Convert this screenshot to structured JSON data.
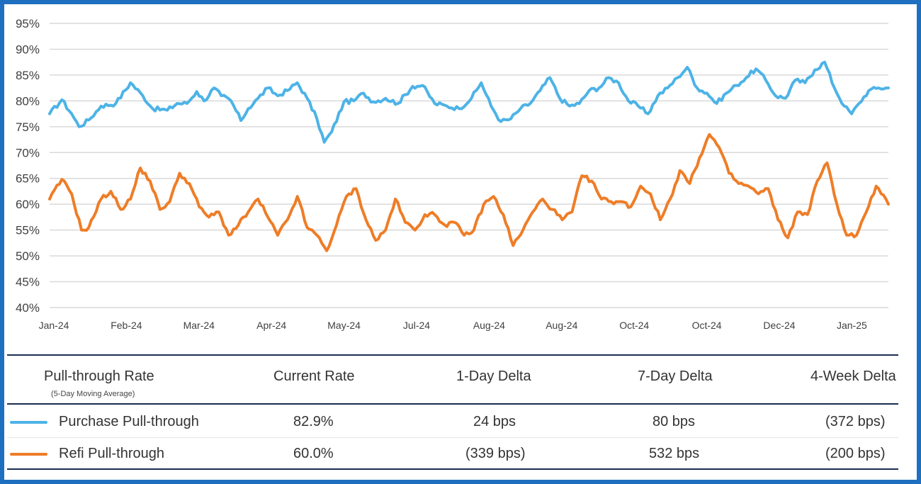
{
  "chart_data": {
    "type": "line",
    "x_tick_labels": [
      "Jan-24",
      "Feb-24",
      "Mar-24",
      "Apr-24",
      "May-24",
      "Jul-24",
      "Aug-24",
      "Aug-24",
      "Oct-24",
      "Oct-24",
      "Dec-24",
      "Jan-25"
    ],
    "y_tick_labels": [
      "95%",
      "90%",
      "85%",
      "80%",
      "75%",
      "70%",
      "65%",
      "60%",
      "55%",
      "50%",
      "45%",
      "40%"
    ],
    "ylim": [
      40,
      95
    ],
    "y_unit": "%",
    "grid": true,
    "x_count": 260,
    "series": [
      {
        "name": "Purchase Pull-through",
        "color": "#4db3e6",
        "keypoints": [
          [
            0,
            77.5
          ],
          [
            5,
            80.2
          ],
          [
            9,
            77.5
          ],
          [
            12,
            75.0
          ],
          [
            16,
            76.3
          ],
          [
            21,
            79.0
          ],
          [
            27,
            79.5
          ],
          [
            33,
            83.5
          ],
          [
            38,
            81.0
          ],
          [
            42,
            78.5
          ],
          [
            48,
            78.2
          ],
          [
            52,
            79.5
          ],
          [
            56,
            79.5
          ],
          [
            60,
            81.8
          ],
          [
            63,
            80.0
          ],
          [
            67,
            82.5
          ],
          [
            70,
            81.0
          ],
          [
            74,
            80.0
          ],
          [
            78,
            76.2
          ],
          [
            81,
            78.5
          ],
          [
            85,
            80.5
          ],
          [
            89,
            82.5
          ],
          [
            93,
            81.0
          ],
          [
            97,
            82.0
          ],
          [
            101,
            83.5
          ],
          [
            105,
            80.5
          ],
          [
            109,
            76.5
          ],
          [
            112,
            72.0
          ],
          [
            115,
            74.0
          ],
          [
            120,
            79.8
          ],
          [
            124,
            80.0
          ],
          [
            128,
            81.5
          ],
          [
            132,
            79.8
          ],
          [
            137,
            80.5
          ],
          [
            142,
            79.5
          ],
          [
            148,
            82.8
          ],
          [
            152,
            83.0
          ],
          [
            157,
            79.5
          ],
          [
            162,
            79.0
          ],
          [
            167,
            78.5
          ],
          [
            172,
            80.5
          ],
          [
            176,
            83.5
          ],
          [
            180,
            79.0
          ],
          [
            184,
            76.0
          ],
          [
            188,
            76.5
          ],
          [
            192,
            78.5
          ],
          [
            196,
            79.5
          ],
          [
            200,
            82.0
          ],
          [
            204,
            84.5
          ],
          [
            208,
            80.5
          ],
          [
            212,
            79.0
          ],
          [
            216,
            79.5
          ],
          [
            220,
            82.0
          ],
          [
            224,
            82.5
          ],
          [
            228,
            84.5
          ],
          [
            232,
            83.5
          ],
          [
            236,
            80.0
          ],
          [
            240,
            79.0
          ],
          [
            244,
            77.5
          ],
          [
            248,
            81.0
          ],
          [
            252,
            82.5
          ],
          [
            256,
            84.5
          ],
          [
            260,
            86.5
          ],
          [
            264,
            82.5
          ],
          [
            268,
            81.5
          ],
          [
            272,
            79.5
          ],
          [
            276,
            81.5
          ],
          [
            280,
            83.0
          ],
          [
            284,
            84.5
          ],
          [
            288,
            86.2
          ],
          [
            292,
            84.0
          ],
          [
            296,
            81.0
          ],
          [
            300,
            80.5
          ],
          [
            304,
            84.0
          ],
          [
            308,
            83.5
          ],
          [
            312,
            86.0
          ],
          [
            316,
            87.5
          ],
          [
            320,
            82.5
          ],
          [
            324,
            79.0
          ],
          [
            327,
            77.5
          ],
          [
            330,
            79.5
          ],
          [
            334,
            82.0
          ],
          [
            338,
            82.5
          ],
          [
            342,
            82.5
          ]
        ]
      },
      {
        "name": "Refi Pull-through",
        "color": "#ee7d27",
        "keypoints": [
          [
            0,
            61.0
          ],
          [
            5,
            64.8
          ],
          [
            9,
            62.0
          ],
          [
            13,
            55.0
          ],
          [
            16,
            55.5
          ],
          [
            21,
            61.0
          ],
          [
            25,
            62.5
          ],
          [
            29,
            59.0
          ],
          [
            33,
            61.0
          ],
          [
            37,
            67.0
          ],
          [
            41,
            64.5
          ],
          [
            45,
            59.0
          ],
          [
            49,
            60.5
          ],
          [
            53,
            66.0
          ],
          [
            57,
            64.0
          ],
          [
            61,
            59.5
          ],
          [
            65,
            57.5
          ],
          [
            69,
            58.5
          ],
          [
            73,
            54.0
          ],
          [
            77,
            56.0
          ],
          [
            81,
            58.5
          ],
          [
            85,
            61.0
          ],
          [
            89,
            57.5
          ],
          [
            93,
            54.0
          ],
          [
            97,
            57.0
          ],
          [
            101,
            61.5
          ],
          [
            105,
            55.5
          ],
          [
            109,
            54.0
          ],
          [
            113,
            51.0
          ],
          [
            117,
            56.0
          ],
          [
            121,
            61.5
          ],
          [
            125,
            63.0
          ],
          [
            129,
            57.0
          ],
          [
            133,
            53.0
          ],
          [
            137,
            55.0
          ],
          [
            141,
            61.0
          ],
          [
            145,
            56.5
          ],
          [
            149,
            55.0
          ],
          [
            153,
            58.0
          ],
          [
            157,
            58.0
          ],
          [
            161,
            56.0
          ],
          [
            165,
            56.5
          ],
          [
            169,
            54.0
          ],
          [
            173,
            55.0
          ],
          [
            177,
            60.0
          ],
          [
            181,
            61.5
          ],
          [
            185,
            58.0
          ],
          [
            189,
            52.0
          ],
          [
            193,
            55.0
          ],
          [
            197,
            58.5
          ],
          [
            201,
            61.0
          ],
          [
            205,
            59.0
          ],
          [
            209,
            57.0
          ],
          [
            213,
            58.5
          ],
          [
            217,
            65.5
          ],
          [
            221,
            64.5
          ],
          [
            225,
            61.0
          ],
          [
            229,
            60.5
          ],
          [
            233,
            60.5
          ],
          [
            237,
            59.5
          ],
          [
            241,
            63.5
          ],
          [
            245,
            62.0
          ],
          [
            249,
            57.0
          ],
          [
            253,
            61.0
          ],
          [
            257,
            66.5
          ],
          [
            261,
            64.0
          ],
          [
            265,
            69.0
          ],
          [
            269,
            73.5
          ],
          [
            273,
            71.0
          ],
          [
            277,
            66.0
          ],
          [
            281,
            64.0
          ],
          [
            285,
            63.5
          ],
          [
            289,
            62.0
          ],
          [
            293,
            63.0
          ],
          [
            297,
            57.0
          ],
          [
            301,
            53.5
          ],
          [
            305,
            58.5
          ],
          [
            309,
            58.0
          ],
          [
            313,
            64.5
          ],
          [
            317,
            68.0
          ],
          [
            321,
            60.0
          ],
          [
            325,
            54.0
          ],
          [
            329,
            54.0
          ],
          [
            333,
            58.5
          ],
          [
            337,
            63.5
          ],
          [
            342,
            60.0
          ]
        ]
      }
    ]
  },
  "table": {
    "headers": [
      "Pull-through Rate",
      "Current Rate",
      "1-Day Delta",
      "7-Day Delta",
      "4-Week Delta"
    ],
    "subheader": "(5-Day Moving Average)",
    "rows": [
      {
        "name": "Purchase Pull-through",
        "current": "82.9%",
        "d1": "24 bps",
        "d7": "80 bps",
        "w4": "(372 bps)",
        "color": "#4db3e6"
      },
      {
        "name": "Refi Pull-through",
        "current": "60.0%",
        "d1": "(339 bps)",
        "d7": "532 bps",
        "w4": "(200 bps)",
        "color": "#ee7d27"
      }
    ]
  }
}
